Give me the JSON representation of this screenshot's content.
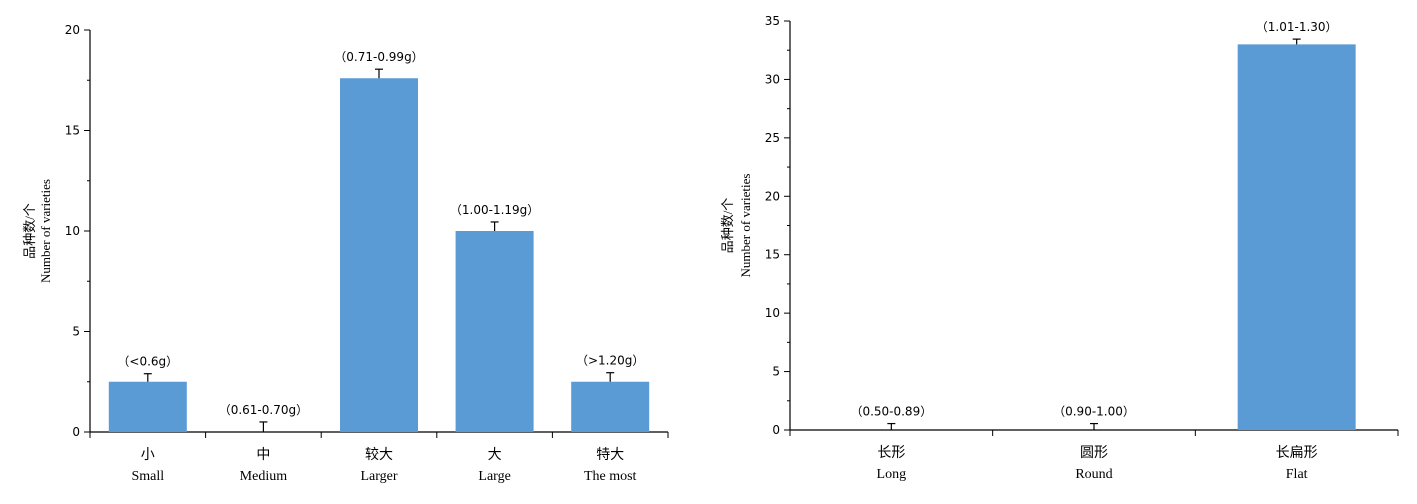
{
  "chart_data": [
    {
      "type": "bar",
      "title": "",
      "ylabel_cn": "品种数/个",
      "ylabel_en": "Number of varieties",
      "ylim": [
        0,
        20
      ],
      "yticks": [
        "0",
        "5",
        "10",
        "15",
        "20"
      ],
      "categories": [
        {
          "cn": "小",
          "en": "Small"
        },
        {
          "cn": "中",
          "en": "Medium"
        },
        {
          "cn": "较大",
          "en": "Larger"
        },
        {
          "cn": "大",
          "en": "Large"
        },
        {
          "cn": "特大",
          "en": "The most"
        }
      ],
      "values": [
        2.5,
        0,
        17.6,
        10.0,
        2.5
      ],
      "errors": [
        0.4,
        0.5,
        0.45,
        0.45,
        0.45
      ],
      "bar_labels": [
        "（<0.6g）",
        "（0.61-0.70g）",
        "（0.71-0.99g）",
        "（1.00-1.19g）",
        "（>1.20g）"
      ],
      "bar_color": "#5b9bd5"
    },
    {
      "type": "bar",
      "title": "",
      "ylabel_cn": "品种数/个",
      "ylabel_en": "Number of varieties",
      "ylim": [
        0,
        35
      ],
      "yticks": [
        "0",
        "5",
        "10",
        "15",
        "20",
        "25",
        "30",
        "35"
      ],
      "categories": [
        {
          "cn": "长形",
          "en": "Long"
        },
        {
          "cn": "圆形",
          "en": "Round"
        },
        {
          "cn": "长扁形",
          "en": "Flat"
        }
      ],
      "values": [
        0,
        0,
        33.0
      ],
      "errors": [
        0.55,
        0.55,
        0.45
      ],
      "bar_labels": [
        "（0.50-0.89）",
        "（0.90-1.00）",
        "（1.01-1.30）"
      ],
      "bar_color": "#5b9bd5"
    }
  ]
}
